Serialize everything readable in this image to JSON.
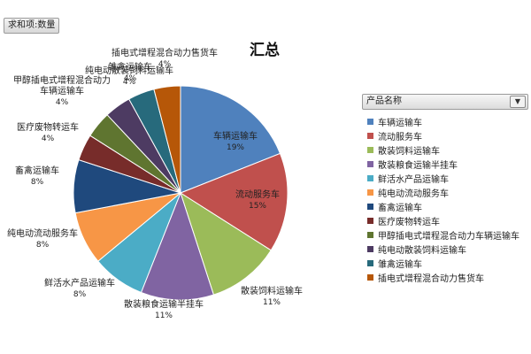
{
  "toolbar": {
    "field_button": "求和项:数量"
  },
  "legend": {
    "header": "产品名称",
    "filter_icon": "filter-dropdown-icon"
  },
  "chart_data": {
    "type": "pie",
    "title": "汇总",
    "slices": [
      {
        "label": "车辆运输车",
        "value": 19,
        "pct": "19%",
        "color": "#4f81bd"
      },
      {
        "label": "流动服务车",
        "value": 15,
        "pct": "15%",
        "color": "#c0504d"
      },
      {
        "label": "散装饲料运输车",
        "value": 11,
        "pct": "11%",
        "color": "#9bbb59"
      },
      {
        "label": "散装粮食运输半挂车",
        "value": 11,
        "pct": "11%",
        "color": "#8064a2"
      },
      {
        "label": "鲜活水产品运输车",
        "value": 8,
        "pct": "8%",
        "color": "#4bacc6"
      },
      {
        "label": "纯电动流动服务车",
        "value": 8,
        "pct": "8%",
        "color": "#f79646"
      },
      {
        "label": "畜禽运输车",
        "value": 8,
        "pct": "8%",
        "color": "#1f497d"
      },
      {
        "label": "医疗废物转运车",
        "value": 4,
        "pct": "4%",
        "color": "#772c2a"
      },
      {
        "label": "甲醇插电式增程混合动力车辆运输车",
        "value": 4,
        "pct": "4%",
        "color": "#5f7530"
      },
      {
        "label": "纯电动散装饲料运输车",
        "value": 4,
        "pct": "4%",
        "color": "#4d3b62"
      },
      {
        "label": "雏禽运输车",
        "value": 4,
        "pct": "4%",
        "color": "#276a7c"
      },
      {
        "label": "插电式增程混合动力售货车",
        "value": 4,
        "pct": "4%",
        "color": "#b65708"
      }
    ],
    "legend_position": "right"
  }
}
